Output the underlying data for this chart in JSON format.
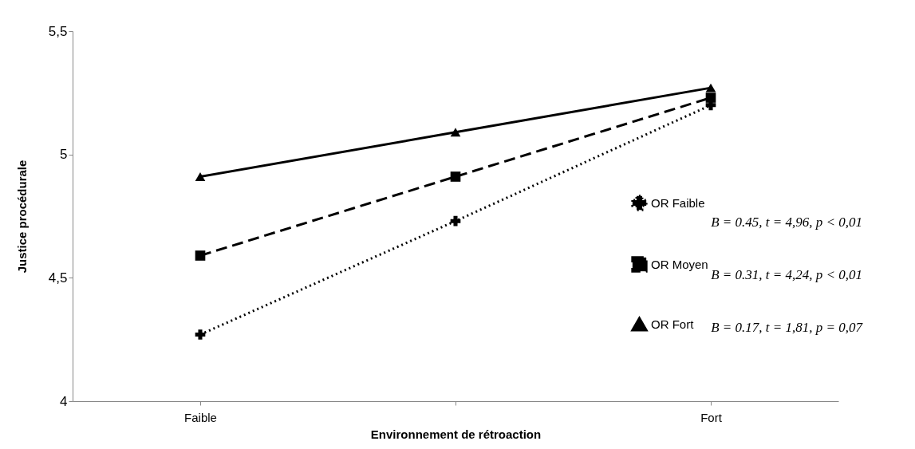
{
  "chart_data": {
    "type": "line",
    "xlabel": "Environnement de rétroaction",
    "ylabel": "Justice procédurale",
    "categories": [
      "Faible",
      null,
      "Fort"
    ],
    "series": [
      {
        "name": "OR Faible",
        "color": "#000000",
        "values": [
          4.27,
          4.73,
          5.2
        ],
        "marker": "cross",
        "line_style": "dotted"
      },
      {
        "name": "OR Moyen",
        "color": "#000000",
        "values": [
          4.59,
          4.91,
          5.23
        ],
        "marker": "square",
        "line_style": "dashed"
      },
      {
        "name": "OR Fort",
        "color": "#000000",
        "values": [
          4.91,
          5.09,
          5.27
        ],
        "marker": "triangle",
        "line_style": "solid"
      }
    ],
    "ylim": [
      4,
      5.5
    ],
    "yticks": [
      4,
      {
        "value": 4.5,
        "label": "4,5"
      },
      5,
      {
        "value": 5.5,
        "label": "5,5"
      }
    ],
    "grid": false,
    "legend": "right",
    "annotations": [
      "B = 0.45, t = 4,96, p < 0,01",
      "B = 0.31, t = 4,24, p < 0,01",
      "B = 0.17, t = 1,81, p = 0,07"
    ]
  }
}
